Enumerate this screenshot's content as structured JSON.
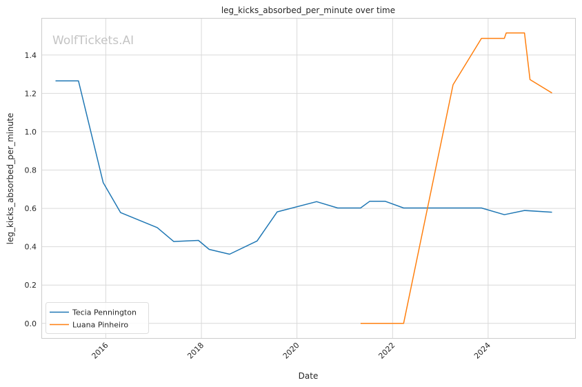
{
  "chart_data": {
    "type": "line",
    "title": "leg_kicks_absorbed_per_minute over time",
    "xlabel": "Date",
    "ylabel": "leg_kicks_absorbed_per_minute",
    "watermark": "WolfTickets.AI",
    "ylim": [
      -0.08,
      1.59
    ],
    "xlim": [
      "2014-09-01",
      "2025-11-01"
    ],
    "yticks": [
      0.0,
      0.2,
      0.4,
      0.6,
      0.8,
      1.0,
      1.2,
      1.4
    ],
    "xticks": [
      "2016",
      "2018",
      "2020",
      "2022",
      "2024"
    ],
    "grid": true,
    "legend_position": "lower-left",
    "series": [
      {
        "name": "Tecia Pennington",
        "color": "#1f77b4",
        "points": [
          [
            "2014-12-13",
            1.265
          ],
          [
            "2015-06-06",
            1.265
          ],
          [
            "2015-12-12",
            0.735
          ],
          [
            "2016-04-23",
            0.578
          ],
          [
            "2017-01-28",
            0.5
          ],
          [
            "2017-06-03",
            0.427
          ],
          [
            "2017-12-09",
            0.433
          ],
          [
            "2018-03-01",
            0.386
          ],
          [
            "2018-08-04",
            0.361
          ],
          [
            "2019-03-02",
            0.43
          ],
          [
            "2019-08-03",
            0.582
          ],
          [
            "2020-05-30",
            0.635
          ],
          [
            "2020-11-07",
            0.602
          ],
          [
            "2021-05-01",
            0.602
          ],
          [
            "2021-07-10",
            0.637
          ],
          [
            "2021-11-06",
            0.637
          ],
          [
            "2022-03-26",
            0.602
          ],
          [
            "2023-11-11",
            0.602
          ],
          [
            "2024-05-04",
            0.567
          ],
          [
            "2024-10-05",
            0.589
          ],
          [
            "2025-05-03",
            0.58
          ]
        ]
      },
      {
        "name": "Luana Pinheiro",
        "color": "#ff7f0e",
        "points": [
          [
            "2021-05-01",
            0.0
          ],
          [
            "2022-03-26",
            0.0
          ],
          [
            "2023-04-08",
            1.245
          ],
          [
            "2023-11-11",
            1.487
          ],
          [
            "2024-05-04",
            1.487
          ],
          [
            "2024-05-18",
            1.515
          ],
          [
            "2024-10-05",
            1.515
          ],
          [
            "2024-11-16",
            1.272
          ],
          [
            "2025-05-03",
            1.202
          ]
        ]
      }
    ]
  }
}
